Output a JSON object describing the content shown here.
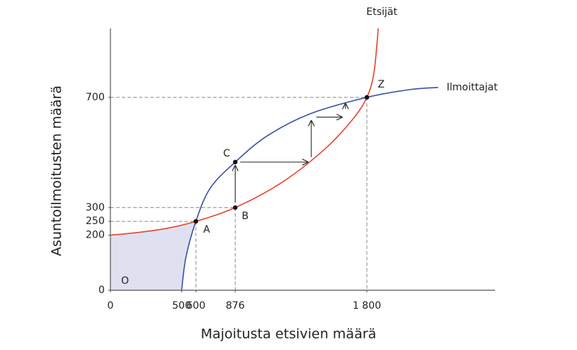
{
  "chart_data": {
    "type": "curves",
    "xlabel": "Majoitusta etsivien määrä",
    "ylabel": "Asuntoilmoitusten määrä",
    "origin_label": "O",
    "xlim": [
      0,
      2700
    ],
    "ylim": [
      0,
      950
    ],
    "xticks": [
      0,
      500,
      600,
      876,
      {
        "value": 1800,
        "label": "1 800"
      }
    ],
    "yticks": [
      0,
      200,
      250,
      300,
      700
    ],
    "series": [
      {
        "name": "Etsijät",
        "color": "#e8432a",
        "x": [
          0,
          200,
          400,
          600,
          876,
          1200,
          1500,
          1700,
          1800,
          1850,
          1880
        ],
        "y": [
          200,
          210,
          225,
          250,
          300,
          390,
          510,
          620,
          700,
          790,
          950
        ]
      },
      {
        "name": "Ilmoittajat",
        "color": "#3b4fa8",
        "x": [
          500,
          530,
          600,
          700,
          876,
          1100,
          1400,
          1800,
          2100,
          2300
        ],
        "y": [
          0,
          120,
          250,
          370,
          465,
          560,
          640,
          700,
          728,
          736
        ]
      }
    ],
    "shade_color": "#dfe1f0",
    "points": [
      {
        "label": "A",
        "x": 600,
        "y": 250,
        "guide": true
      },
      {
        "label": "B",
        "x": 876,
        "y": 300,
        "guide": true
      },
      {
        "label": "C",
        "x": 876,
        "y": 465,
        "guide": false
      },
      {
        "label": "Z",
        "x": 1800,
        "y": 700,
        "guide": true
      }
    ],
    "arrows": [
      {
        "from": [
          876,
          300
        ],
        "to": [
          876,
          465
        ]
      },
      {
        "from": [
          876,
          465
        ],
        "to": [
          1410,
          465
        ]
      },
      {
        "from": [
          1410,
          465
        ],
        "to": [
          1410,
          628
        ]
      },
      {
        "from": [
          1410,
          628
        ],
        "to": [
          1650,
          628
        ]
      },
      {
        "from": [
          1650,
          640
        ],
        "to": [
          1650,
          690
        ]
      }
    ]
  }
}
